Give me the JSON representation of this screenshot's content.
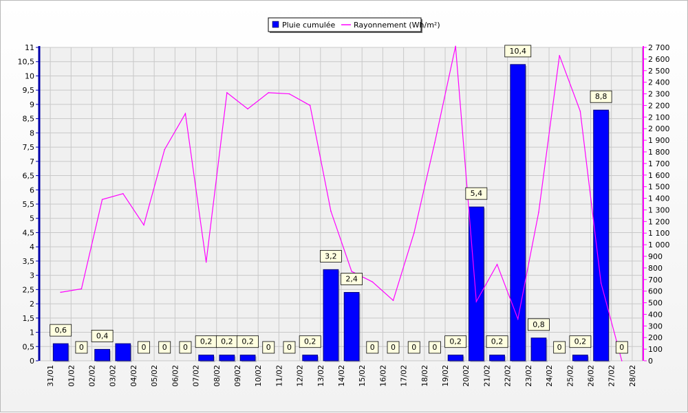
{
  "chart_data": {
    "type": "bar+line",
    "legend": {
      "position": "top-center",
      "entries": [
        {
          "name": "Pluie cumulée",
          "color": "#0000ff",
          "marker": "square"
        },
        {
          "name": "Rayonnement (Wh/m²)",
          "color": "#ff00ff",
          "marker": "line"
        }
      ]
    },
    "x_labels": [
      "31/01",
      "01/02",
      "02/02",
      "03/02",
      "04/02",
      "05/02",
      "06/02",
      "07/02",
      "08/02",
      "09/02",
      "10/02",
      "11/02",
      "12/02",
      "13/02",
      "14/02",
      "15/02",
      "16/02",
      "17/02",
      "18/02",
      "19/02",
      "20/02",
      "21/02",
      "22/02",
      "23/02",
      "24/02",
      "25/02",
      "26/02",
      "27/02",
      "28/02"
    ],
    "categories": [
      "01/02",
      "02/02",
      "03/02",
      "04/02",
      "05/02",
      "06/02",
      "07/02",
      "08/02",
      "09/02",
      "10/02",
      "11/02",
      "12/02",
      "13/02",
      "14/02",
      "15/02",
      "16/02",
      "17/02",
      "18/02",
      "19/02",
      "20/02",
      "21/02",
      "22/02",
      "23/02",
      "24/02",
      "25/02",
      "26/02",
      "27/02",
      "28/02"
    ],
    "series": [
      {
        "name": "Pluie cumulée",
        "axis": "left",
        "kind": "bar",
        "color": "#0000ff",
        "values": [
          0.6,
          0,
          0.4,
          0.6,
          0,
          0,
          0,
          0.2,
          0.2,
          0.2,
          0,
          0,
          0.2,
          3.2,
          2.4,
          0,
          0,
          0,
          0,
          0.2,
          5.4,
          0.2,
          10.4,
          0.8,
          0,
          0.2,
          8.8,
          0
        ]
      },
      {
        "name": "Rayonnement (Wh/m²)",
        "axis": "right",
        "kind": "line",
        "color": "#ff00ff",
        "values": [
          590,
          620,
          1390,
          1440,
          1170,
          1820,
          2130,
          850,
          2310,
          2170,
          2310,
          2300,
          2200,
          1290,
          770,
          680,
          520,
          1100,
          1880,
          2710,
          510,
          830,
          360,
          1280,
          2630,
          2150,
          670,
          0
        ]
      }
    ],
    "data_labels": [
      "0,6",
      "0",
      "0,4",
      "",
      "0",
      "0",
      "0",
      "0,2",
      "0,2",
      "0,2",
      "0",
      "0",
      "0,2",
      "3,2",
      "2,4",
      "0",
      "0",
      "0",
      "0",
      "0,2",
      "5,4",
      "0,2",
      "10,4",
      "0,8",
      "0",
      "0,2",
      "8,8",
      "0"
    ],
    "y_left": {
      "min": 0,
      "max": 11,
      "step": 0.5,
      "tick_labels": [
        "0",
        "0,5",
        "1",
        "1,5",
        "2",
        "2,5",
        "3",
        "3,5",
        "4",
        "4,5",
        "5",
        "5,5",
        "6",
        "6,5",
        "7",
        "7,5",
        "8",
        "8,5",
        "9",
        "9,5",
        "10",
        "10,5",
        "11"
      ]
    },
    "y_right": {
      "min": 0,
      "max": 2700,
      "step": 100,
      "tick_labels": [
        "0",
        "100",
        "200",
        "300",
        "400",
        "500",
        "600",
        "700",
        "800",
        "900",
        "1 000",
        "1 100",
        "1 200",
        "1 300",
        "1 400",
        "1 500",
        "1 600",
        "1 700",
        "1 800",
        "1 900",
        "2 000",
        "2 100",
        "2 200",
        "2 300",
        "2 400",
        "2 500",
        "2 600",
        "2 700"
      ]
    },
    "grid": true,
    "colors": {
      "left_axis": "#0000aa",
      "right_axis": "#ff00ff",
      "grid": "#c8c8c8",
      "plot_bg": "#f0f0f0",
      "label_bg": "#ffffe0"
    }
  }
}
